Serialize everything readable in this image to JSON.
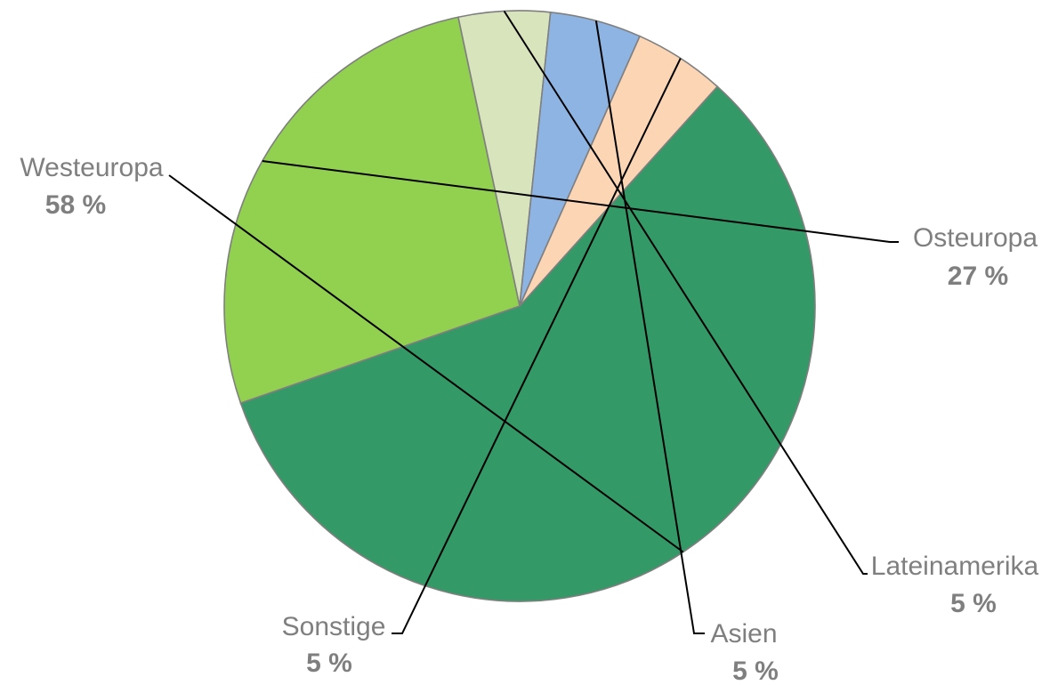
{
  "chart_data": {
    "type": "pie",
    "title": "",
    "slices": [
      {
        "label": "Westeuropa",
        "value": 58,
        "value_label": "58 %",
        "color": "#339966"
      },
      {
        "label": "Osteuropa",
        "value": 27,
        "value_label": "27 %",
        "color": "#92d050"
      },
      {
        "label": "Lateinamerika",
        "value": 5,
        "value_label": "5 %",
        "color": "#d8e4bc"
      },
      {
        "label": "Asien",
        "value": 5,
        "value_label": "5 %",
        "color": "#8eb4e3"
      },
      {
        "label": "Sonstige",
        "value": 5,
        "value_label": "5 %",
        "color": "#fcd5b5"
      }
    ],
    "start_angle_deg": 42,
    "direction": "clockwise",
    "legend": "none",
    "data_labels": "outside with leader lines",
    "border_color": "#7f7f7f",
    "label_color": "#7f7f7f",
    "leader_line_color": "#000000"
  }
}
